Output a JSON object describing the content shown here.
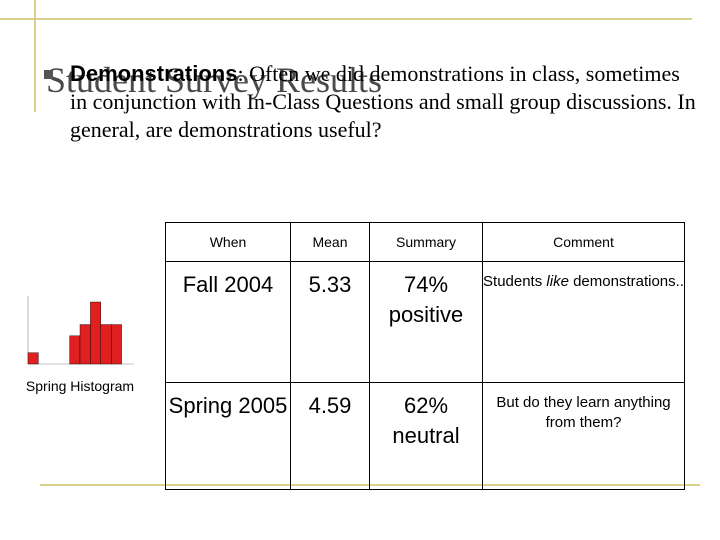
{
  "slide": {
    "title": "Student Survey Results",
    "body_lead": "Demonstrations",
    "body_rest": ": Often we did demonstrations in class, sometimes in conjunction with In-Class Questions and small group discussions. In general, are demonstrations useful?"
  },
  "histogram": {
    "label": "Spring Histogram",
    "values": [
      2,
      0,
      0,
      0,
      5,
      7,
      11,
      7,
      7,
      0
    ],
    "bar_color": "#e02020"
  },
  "table": {
    "headers": [
      "When",
      "Mean",
      "Summary",
      "Comment"
    ],
    "rows": [
      {
        "when": "Fall 2004",
        "mean": "5.33",
        "summary": "74% positive",
        "comment_pre": "Students ",
        "comment_em": "like",
        "comment_post": " demonstrations.."
      },
      {
        "when": "Spring 2005",
        "mean": "4.59",
        "summary": "62% neutral",
        "comment_pre": "But do they learn anything from them?",
        "comment_em": "",
        "comment_post": ""
      }
    ]
  }
}
